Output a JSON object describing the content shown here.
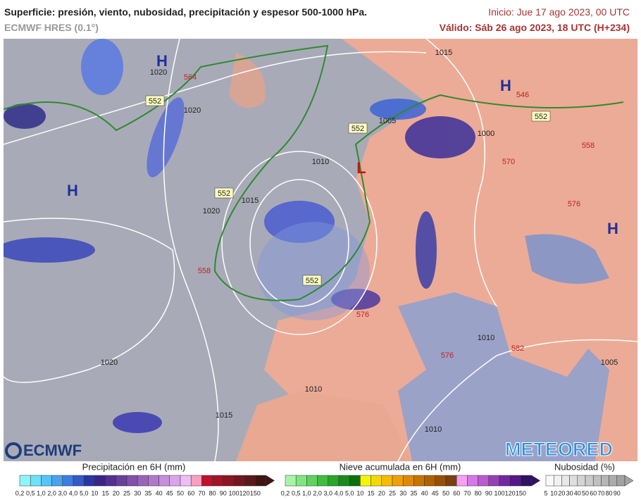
{
  "header": {
    "title": "Superficie: presión, viento, nubosidad, precipitación y espesor 500-1000 hPa.",
    "model": "ECMWF HRES (0.1°)",
    "init": "Inicio: Jue 17 ago 2023, 00 UTC",
    "valid": "Válido: Sáb 26 ago 2023, 18 UTC (H+234)"
  },
  "map": {
    "centers": [
      "H",
      "H",
      "H",
      "H",
      "L"
    ],
    "thickness_boxes": [
      "552",
      "552",
      "552",
      "552",
      "552"
    ],
    "isobars": [
      "1015",
      "1020",
      "1020",
      "1005",
      "1000",
      "1010",
      "1015",
      "1020",
      "1020",
      "1010",
      "1015",
      "1010",
      "1010",
      "1005"
    ],
    "thickness": [
      "564",
      "546",
      "558",
      "570",
      "576",
      "558",
      "576",
      "582",
      "576"
    ]
  },
  "logos": {
    "left": "ECMWF",
    "right": "METEORED"
  },
  "legends": {
    "precipitation": {
      "title": "Precipitación en 6H (mm)",
      "labels": [
        "0,2",
        "0,5",
        "1,0",
        "2,0",
        "3,0",
        "4,0",
        "5,0",
        "10",
        "15",
        "20",
        "25",
        "30",
        "35",
        "40",
        "45",
        "50",
        "60",
        "70",
        "80",
        "90",
        "100",
        "120",
        "150"
      ],
      "colors": [
        "#8ff5fb",
        "#6ee0fb",
        "#55c4f6",
        "#4aa3ee",
        "#3c7fe0",
        "#3359c8",
        "#2a35a8",
        "#3a2587",
        "#52318f",
        "#6a3f9c",
        "#8251ab",
        "#9a63ba",
        "#b078ca",
        "#c58ddb",
        "#d9a5ea",
        "#eebdf6",
        "#f7a0c0",
        "#c0102a",
        "#a51328",
        "#8c1524",
        "#731620",
        "#5c171c",
        "#3e1414"
      ]
    },
    "snow": {
      "title": "Nieve acumulada en 6H (mm)",
      "labels": [
        "0,2",
        "0,5",
        "1,0",
        "2,0",
        "3,0",
        "4,0",
        "5,0",
        "10",
        "15",
        "20",
        "25",
        "30",
        "35",
        "40",
        "45",
        "50",
        "60",
        "70",
        "80",
        "90",
        "100",
        "120",
        "150"
      ],
      "colors": [
        "#a8f5a8",
        "#80e680",
        "#5ed35e",
        "#3fbd3f",
        "#2aa52a",
        "#1a8c1a",
        "#0d700d",
        "#f5f500",
        "#f5d800",
        "#f5bc00",
        "#f0a000",
        "#e08a00",
        "#c87400",
        "#b06000",
        "#985000",
        "#7a4010",
        "#f5a0f5",
        "#d678e6",
        "#b85ad0",
        "#9640b8",
        "#7428a0",
        "#541888",
        "#301060"
      ]
    },
    "clouds": {
      "title": "Nubosidad (%)",
      "labels": [
        "5",
        "10",
        "20",
        "30",
        "40",
        "50",
        "60",
        "70",
        "80",
        "90"
      ],
      "colors": [
        "#fafafa",
        "#f2f2f2",
        "#e8e8e8",
        "#dedede",
        "#d4d4d4",
        "#cacaca",
        "#c0c0c0",
        "#b6b6b6",
        "#acacac",
        "#a2a2a2"
      ]
    }
  }
}
